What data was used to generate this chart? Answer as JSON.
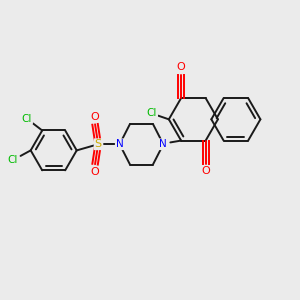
{
  "background_color": "#ebebeb",
  "bond_color": "#1a1a1a",
  "atom_colors": {
    "O": "#ff0000",
    "N": "#0000ff",
    "Cl": "#00bb00",
    "S": "#ccaa00"
  },
  "figsize": [
    3.0,
    3.0
  ],
  "dpi": 100
}
